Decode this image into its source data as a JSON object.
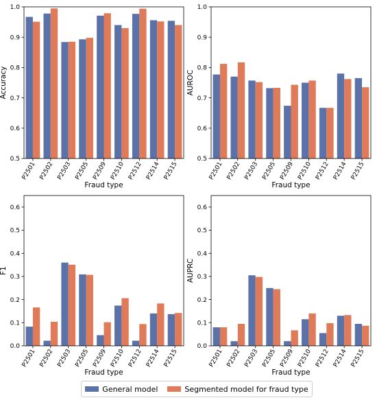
{
  "chart_data": [
    {
      "type": "bar",
      "categories": [
        "P2501",
        "P2502",
        "P2503",
        "P2505",
        "P2509",
        "P2510",
        "P2512",
        "P2514",
        "P2515"
      ],
      "series": [
        {
          "name": "General model",
          "values": [
            0.967,
            0.978,
            0.884,
            0.893,
            0.971,
            0.94,
            0.977,
            0.956,
            0.954
          ]
        },
        {
          "name": "Segmented model for fraud type",
          "values": [
            0.951,
            0.995,
            0.885,
            0.898,
            0.979,
            0.93,
            0.994,
            0.952,
            0.94
          ]
        }
      ],
      "xlabel": "Fraud type",
      "ylabel": "Accuracy",
      "ylim": [
        0.5,
        1.0
      ],
      "yticks": [
        "0.5",
        "0.6",
        "0.7",
        "0.8",
        "0.9",
        "1.0"
      ]
    },
    {
      "type": "bar",
      "categories": [
        "P2501",
        "P2502",
        "P2503",
        "P2505",
        "P2509",
        "P2510",
        "P2512",
        "P2514",
        "P2515"
      ],
      "series": [
        {
          "name": "General model",
          "values": [
            0.777,
            0.77,
            0.757,
            0.732,
            0.674,
            0.75,
            0.667,
            0.78,
            0.765
          ]
        },
        {
          "name": "Segmented model for fraud type",
          "values": [
            0.812,
            0.817,
            0.752,
            0.733,
            0.743,
            0.757,
            0.667,
            0.762,
            0.735
          ]
        }
      ],
      "xlabel": "Fraud type",
      "ylabel": "AUROC",
      "ylim": [
        0.5,
        1.0
      ],
      "yticks": [
        "0.5",
        "0.6",
        "0.7",
        "0.8",
        "0.9",
        "1.0"
      ]
    },
    {
      "type": "bar",
      "categories": [
        "P2501",
        "P2502",
        "P2503",
        "P2505",
        "P2509",
        "P2510",
        "P2512",
        "P2514",
        "P2515"
      ],
      "series": [
        {
          "name": "General model",
          "values": [
            0.083,
            0.022,
            0.36,
            0.309,
            0.046,
            0.174,
            0.022,
            0.14,
            0.137
          ]
        },
        {
          "name": "Segmented model for fraud type",
          "values": [
            0.166,
            0.104,
            0.351,
            0.307,
            0.102,
            0.206,
            0.094,
            0.183,
            0.142
          ]
        }
      ],
      "xlabel": "Fraud type",
      "ylabel": "F1",
      "ylim": [
        0,
        0.65
      ],
      "yticks": [
        "0.0",
        "0.1",
        "0.2",
        "0.3",
        "0.4",
        "0.5",
        "0.6"
      ]
    },
    {
      "type": "bar",
      "categories": [
        "P2501",
        "P2502",
        "P2503",
        "P2505",
        "P2509",
        "P2510",
        "P2512",
        "P2514",
        "P2515"
      ],
      "series": [
        {
          "name": "General model",
          "values": [
            0.08,
            0.02,
            0.305,
            0.25,
            0.02,
            0.115,
            0.055,
            0.13,
            0.095
          ]
        },
        {
          "name": "Segmented model for fraud type",
          "values": [
            0.08,
            0.095,
            0.298,
            0.245,
            0.067,
            0.14,
            0.098,
            0.133,
            0.087
          ]
        }
      ],
      "xlabel": "Fraud type",
      "ylabel": "AUPRC",
      "ylim": [
        0,
        0.65
      ],
      "yticks": [
        "0.0",
        "0.1",
        "0.2",
        "0.3",
        "0.4",
        "0.5",
        "0.6"
      ]
    }
  ],
  "legend": {
    "placement": "bottom-center",
    "items": [
      {
        "label": "General model",
        "color": "#5b72a8"
      },
      {
        "label": "Segmented model for fraud type",
        "color": "#e07b5a"
      }
    ]
  }
}
